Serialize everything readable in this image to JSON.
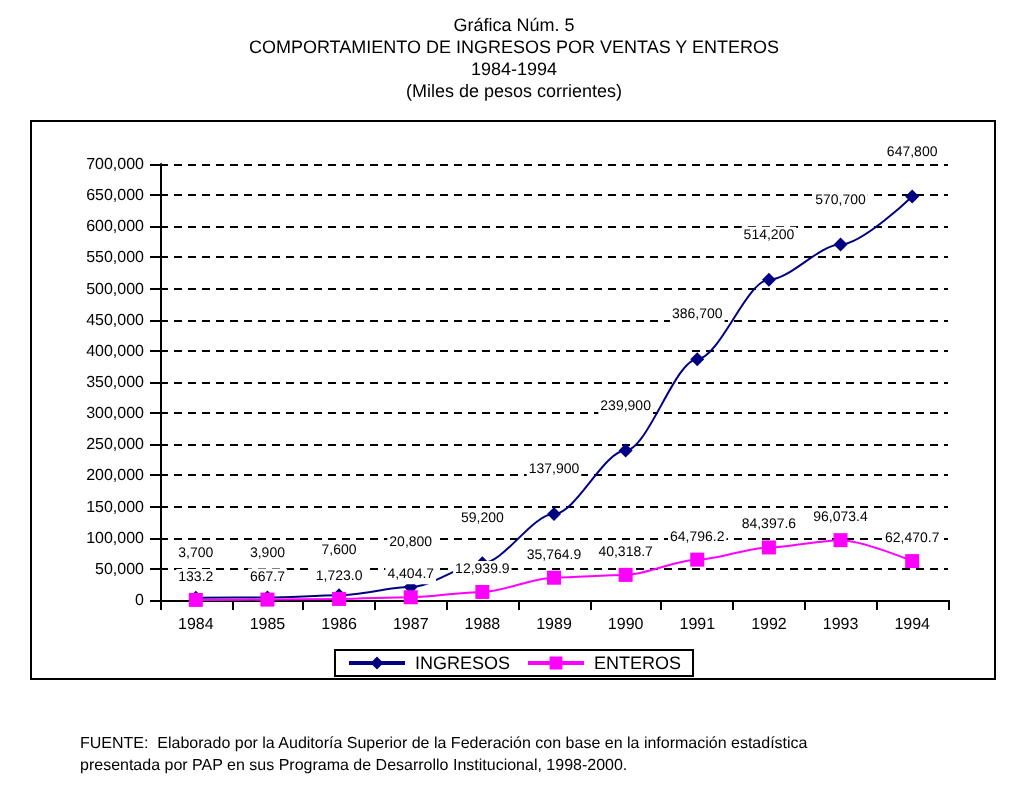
{
  "chart_data": {
    "type": "line",
    "title": "Gráfica Núm. 5\nCOMPORTAMIENTO DE INGRESOS POR VENTAS Y ENTEROS\n1984-1994",
    "subtitle": "(Miles de pesos corrientes)",
    "categories": [
      "1984",
      "1985",
      "1986",
      "1987",
      "1988",
      "1989",
      "1990",
      "1991",
      "1992",
      "1993",
      "1994"
    ],
    "series": [
      {
        "name": "INGRESOS",
        "color": "#000080",
        "marker": "diamond",
        "values": [
          3700,
          3900,
          7600,
          20800,
          59200,
          137900,
          239900,
          386700,
          514200,
          570700,
          647800
        ],
        "value_labels": [
          "3,700",
          "3,900",
          "7,600",
          "20,800",
          "59,200",
          "137,900",
          "239,900",
          "386,700",
          "514,200",
          "570,700",
          "647,800"
        ]
      },
      {
        "name": "ENTEROS",
        "color": "#ff00ff",
        "marker": "square",
        "values": [
          133.2,
          667.7,
          1723.0,
          4404.7,
          12939.9,
          35764.9,
          40318.7,
          64796.2,
          84397.6,
          96073.4,
          62470.7
        ],
        "value_labels": [
          "133.2",
          "667.7",
          "1,723.0",
          "4,404.7",
          "12,939.9",
          "35,764.9",
          "40,318.7",
          "64,796.2",
          "84,397.6",
          "96,073.4",
          "62,470.7"
        ]
      }
    ],
    "ylim": [
      0,
      700000
    ],
    "yticks": [
      0,
      {
        "value": 50000,
        "label": "50,000"
      },
      {
        "value": 100000,
        "label": "100,000"
      },
      {
        "value": 150000,
        "label": "150,000"
      },
      {
        "value": 200000,
        "label": "200,000"
      },
      {
        "value": 250000,
        "label": "250,000"
      },
      {
        "value": 300000,
        "label": "300,000"
      },
      {
        "value": 350000,
        "label": "350,000"
      },
      {
        "value": 400000,
        "label": "400,000"
      },
      {
        "value": 450000,
        "label": "450,000"
      },
      {
        "value": 500000,
        "label": "500,000"
      },
      {
        "value": 550000,
        "label": "550,000"
      },
      {
        "value": 600000,
        "label": "600,000"
      },
      {
        "value": 650000,
        "label": "650,000"
      },
      {
        "value": 700000,
        "label": "700,000"
      }
    ],
    "grid": "y",
    "legend": "bottom",
    "line_style": "solid",
    "annotations": [
      "FUENTE:  Elaborado por la Auditoría Superior de la Federación con base en la información estadística\npresentada por PAP en sus Programa de Desarrollo Institucional, 1998-2000."
    ]
  }
}
